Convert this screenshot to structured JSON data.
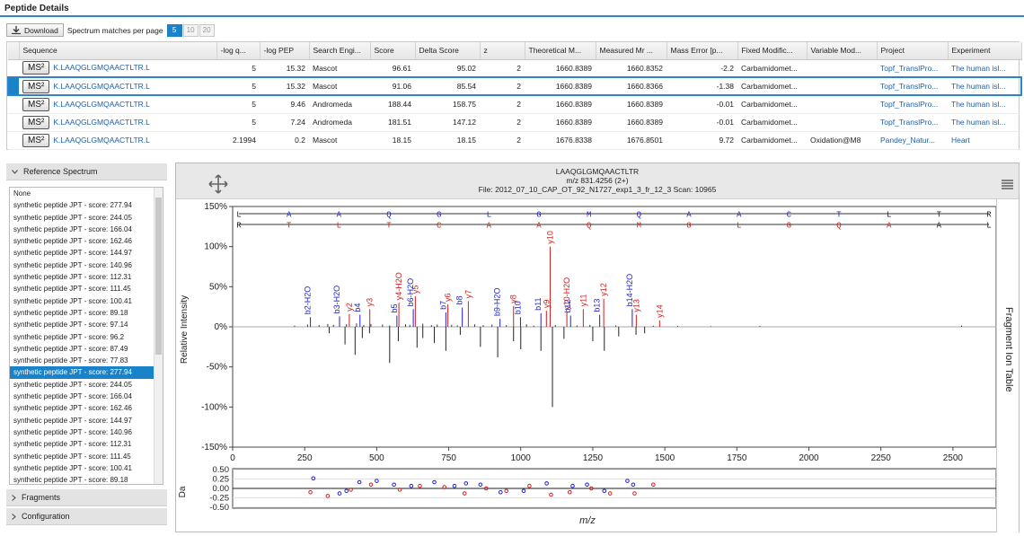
{
  "app": {
    "title": "Peptide Details"
  },
  "toolbar": {
    "download_label": "Download",
    "spm_label": "Spectrum matches per page",
    "page_sizes": [
      "5",
      "10",
      "20"
    ]
  },
  "grid": {
    "columns": [
      "",
      "Sequence",
      "-log q...",
      "-log PEP",
      "Search Engi...",
      "Score",
      "Delta Score",
      "z",
      "Theoretical M...",
      "Measured Mr ...",
      "Mass Error [p...",
      "Fixed Modific...",
      "Variable Mod...",
      "Project",
      "Experiment"
    ],
    "ms2_label": "MS²",
    "rows": [
      [
        "K.LAAQGLGMQAACTLTR.L",
        "5",
        "15.32",
        "Mascot",
        "96.61",
        "95.02",
        "2",
        "1660.8389",
        "1660.8352",
        "-2.2",
        "Carbamidomet...",
        "",
        "Topf_TranslPro...",
        "The human isl..."
      ],
      [
        "K.LAAQGLGMQAACTLTR.L",
        "5",
        "15.32",
        "Mascot",
        "91.06",
        "85.54",
        "2",
        "1660.8389",
        "1660.8366",
        "-1.38",
        "Carbamidomet...",
        "",
        "Topf_TranslPro...",
        "The human isl..."
      ],
      [
        "K.LAAQGLGMQAACTLTR.L",
        "5",
        "9.46",
        "Andromeda",
        "188.44",
        "158.75",
        "2",
        "1660.8389",
        "1660.8389",
        "-0.01",
        "Carbamidomet...",
        "",
        "Topf_TranslPro...",
        "The human isl..."
      ],
      [
        "K.LAAQGLGMQAACTLTR.L",
        "5",
        "7.24",
        "Andromeda",
        "181.51",
        "147.12",
        "2",
        "1660.8389",
        "1660.8389",
        "-0.01",
        "Carbamidomet...",
        "",
        "Topf_TranslPro...",
        "The human isl..."
      ],
      [
        "K.LAAQGLGMQAACTLTR.L",
        "2.1994",
        "0.2",
        "Mascot",
        "18.15",
        "18.15",
        "2",
        "1676.8338",
        "1676.8501",
        "9.72",
        "Carbamidomet...",
        "Oxidation@M8",
        "Pandey_Natur...",
        "Heart"
      ]
    ]
  },
  "reference": {
    "title": "Reference Spectrum",
    "items": [
      "None",
      "synthetic peptide JPT - score: 277.94",
      "synthetic peptide JPT - score: 244.05",
      "synthetic peptide JPT - score: 166.04",
      "synthetic peptide JPT - score: 162.46",
      "synthetic peptide JPT - score: 144.97",
      "synthetic peptide JPT - score: 140.96",
      "synthetic peptide JPT - score: 112.31",
      "synthetic peptide JPT - score: 111.45",
      "synthetic peptide JPT - score: 100.41",
      "synthetic peptide JPT - score: 89.18",
      "synthetic peptide JPT - score: 97.14",
      "synthetic peptide JPT - score: 96.2",
      "synthetic peptide JPT - score: 87.49",
      "synthetic peptide JPT - score: 77.83",
      "synthetic peptide JPT - score: 277.94",
      "synthetic peptide JPT - score: 244.05",
      "synthetic peptide JPT - score: 166.04",
      "synthetic peptide JPT - score: 162.46",
      "synthetic peptide JPT - score: 144.97",
      "synthetic peptide JPT - score: 140.96",
      "synthetic peptide JPT - score: 112.31",
      "synthetic peptide JPT - score: 111.45",
      "synthetic peptide JPT - score: 100.41",
      "synthetic peptide JPT - score: 89.18"
    ],
    "selected_index": 15,
    "fragments_label": "Fragments",
    "configuration_label": "Configuration"
  },
  "spectrum": {
    "sequence": "LAAQGLGMQAACTLTR",
    "mz_line": "m/z 831.4256 (2+)",
    "file_line": "File: 2012_07_10_CAP_OT_92_N1727_exp1_3_fr_12_3   Scan: 10965",
    "side_tab": "Fragment Ion Table",
    "y_axis_label": "Relative Intensity",
    "err_axis_label": "Da",
    "x_axis_label": "m/z",
    "top_b_letters": [
      "L",
      "A",
      "A",
      "Q",
      "G",
      "L",
      "G",
      "M",
      "Q",
      "A",
      "A",
      "C",
      "T",
      "L",
      "T",
      "R"
    ],
    "top_y_letters": [
      "R",
      "T",
      "L",
      "T",
      "C",
      "A",
      "A",
      "Q",
      "M",
      "G",
      "L",
      "G",
      "Q",
      "A",
      "A",
      "L"
    ],
    "colors": {
      "b_ion": "#1f1fd0",
      "y_ion": "#d01f1f",
      "accent": "#1a82c8"
    }
  },
  "chart_data": {
    "type": "scatter",
    "xlim": [
      0,
      2650
    ],
    "ylim": [
      -150,
      150
    ],
    "x_ticks": [
      0,
      250,
      500,
      750,
      1000,
      1250,
      1500,
      1750,
      2000,
      2250,
      2500
    ],
    "y_ticks": [
      "150%",
      "100%",
      "50%",
      "0%",
      "-50%",
      "-100%",
      "-150%"
    ],
    "err_ticks": [
      "0.50",
      "0.25",
      "0.00",
      "-0.25",
      "-0.50"
    ],
    "ylabel": "Relative Intensity",
    "xlabel": "m/z",
    "series": [
      {
        "name": "b",
        "x": [
          270,
          371,
          442,
          570,
          627,
          740,
          797,
          928,
          999,
          1070,
          1173,
          1274,
          1387
        ],
        "y": [
          12,
          13,
          15,
          14,
          22,
          18,
          24,
          10,
          12,
          17,
          14,
          15,
          22
        ]
      },
      {
        "name": "y",
        "x": [
          405,
          476,
          577,
          634,
          747,
          818,
          975,
          1089,
          1102,
          1160,
          1217,
          1288,
          1401,
          1482
        ],
        "y": [
          16,
          22,
          30,
          38,
          28,
          32,
          26,
          20,
          100,
          18,
          22,
          35,
          15,
          8
        ]
      }
    ]
  }
}
